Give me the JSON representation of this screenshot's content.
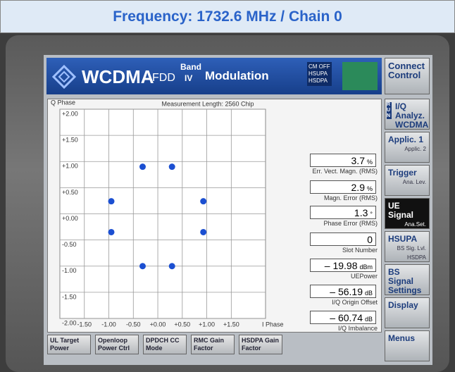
{
  "header": {
    "title": "Frequency: 1732.6 MHz / Chain 0"
  },
  "screen": {
    "app": "WCDMA",
    "mode": "FDD",
    "band_label": "Band",
    "band": "IV",
    "function": "Modulation",
    "status": [
      "CM OFF",
      "HSUPA",
      "HSDPA"
    ],
    "connect": "Connect Control"
  },
  "chart_data": {
    "type": "scatter",
    "subtitle": "Measurement Length: 2560 Chip",
    "xlabel": "I Phase",
    "ylabel": "Q Phase",
    "x": [
      -0.31,
      0.29,
      -0.95,
      0.93,
      -0.95,
      0.93,
      -0.31,
      0.29
    ],
    "values": [
      0.9,
      0.9,
      0.24,
      0.24,
      -0.35,
      -0.35,
      -1.0,
      -1.0
    ],
    "color": "#1b4fd1",
    "xlim": [
      -2,
      2.2
    ],
    "ylim": [
      -2,
      2
    ],
    "xticks": [
      {
        "value": -1.5,
        "label": "-1.50"
      },
      {
        "value": -1,
        "label": "-1.00"
      },
      {
        "value": -0.5,
        "label": "-0.50"
      },
      {
        "value": 0,
        "label": "+0.00"
      },
      {
        "value": 0.5,
        "label": "+0.50"
      },
      {
        "value": 1,
        "label": "+1.00"
      },
      {
        "value": 1.5,
        "label": "+1.50"
      }
    ],
    "yticks": [
      {
        "value": 2,
        "label": "+2.00"
      },
      {
        "value": 1.5,
        "label": "+1.50"
      },
      {
        "value": 1,
        "label": "+1.00"
      },
      {
        "value": 0.5,
        "label": "+0.50"
      },
      {
        "value": 0,
        "label": "+0.00"
      },
      {
        "value": -0.5,
        "label": "-0.50"
      },
      {
        "value": -1,
        "label": "-1.00"
      },
      {
        "value": -1.5,
        "label": "-1.50"
      },
      {
        "value": -2,
        "label": "-2.00"
      }
    ],
    "grid": true
  },
  "measurements": [
    {
      "value": "3.7",
      "unit": "%",
      "label": "Err. Vect. Magn. (RMS)"
    },
    {
      "value": "2.9",
      "unit": "%",
      "label": "Magn. Error (RMS)"
    },
    {
      "value": "1.3",
      "unit": "°",
      "label": "Phase Error (RMS)"
    },
    {
      "value": "0",
      "label": "Slot Number"
    },
    {
      "value": "– 19.98",
      "unit": "dBm",
      "label": "UEPower"
    },
    {
      "value": "– 56.19",
      "unit": "dB",
      "label": "I/Q Origin Offset"
    },
    {
      "value": "– 60.74",
      "unit": "dB",
      "label": "I/Q Imbalance"
    }
  ],
  "softkeys": [
    {
      "label": "I/Q Analyz. WCDMA",
      "run": "RUN"
    },
    {
      "label": "Applic. 1",
      "sub": "Applic. 2"
    },
    {
      "label": "Trigger",
      "sub": "Ana. Lev."
    },
    {
      "label": "UE Signal",
      "sub": "Ana.Set."
    },
    {
      "label": "HSUPA",
      "sub": "BS Sig. Lvl. HSDPA"
    },
    {
      "label": "BS Signal Settings"
    },
    {
      "label": "Display"
    },
    {
      "label": "Menus"
    }
  ],
  "bottom_keys": [
    "UL Target Power",
    "Openloop Power Ctrl",
    "DPDCH CC Mode",
    "RMC Gain Factor",
    "HSDPA Gain Factor"
  ]
}
